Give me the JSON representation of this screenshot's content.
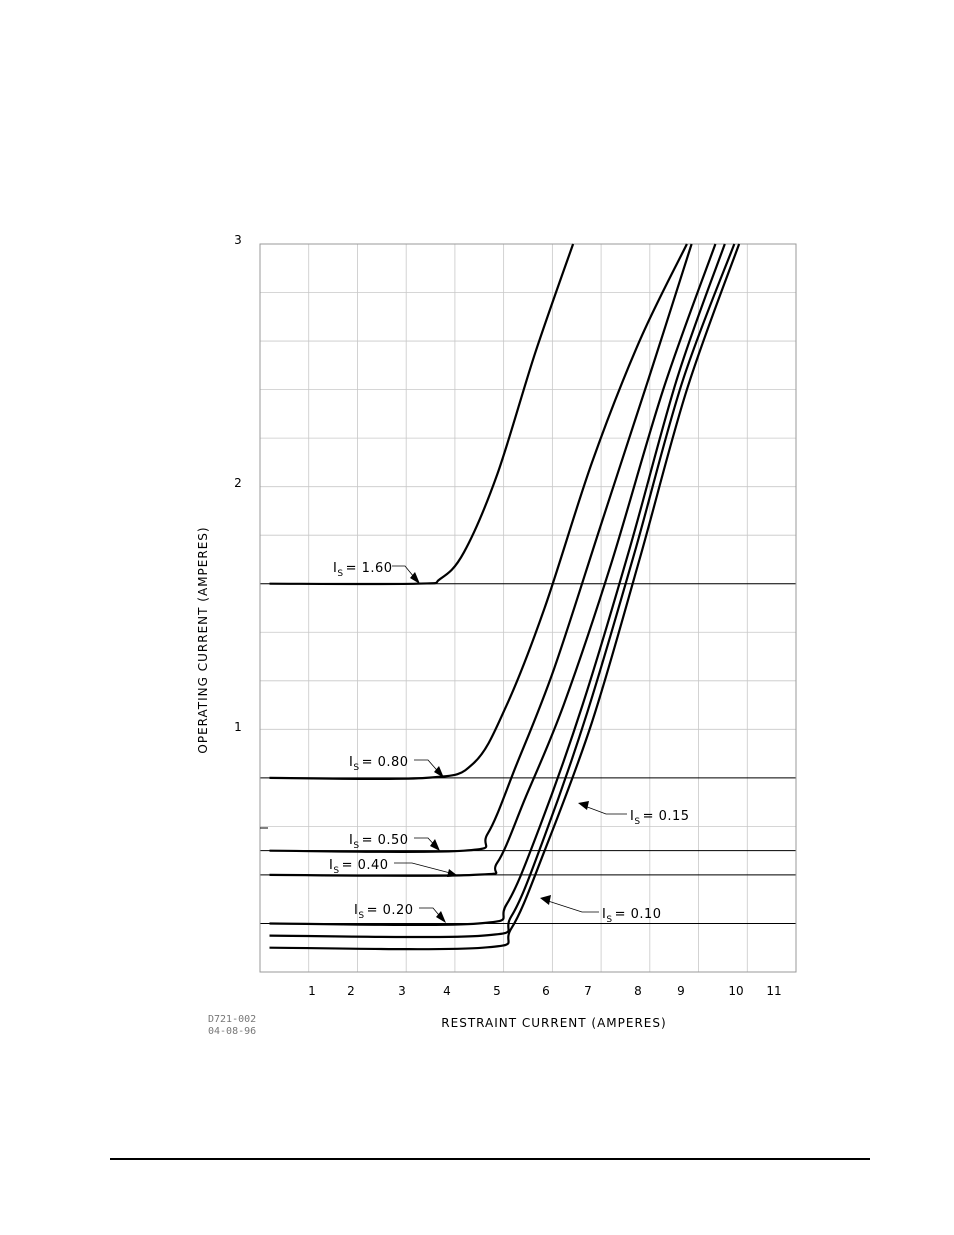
{
  "chart_data": {
    "type": "line",
    "title": "",
    "xlabel": "RESTRAINT CURRENT (AMPERES)",
    "ylabel": "OPERATING CURRENT (AMPERES)",
    "xlim": [
      0,
      11.3
    ],
    "ylim": [
      0,
      3
    ],
    "x_ticks": [
      "1",
      "2",
      "3",
      "4",
      "5",
      "6",
      "7",
      "8",
      "9",
      "10",
      "11"
    ],
    "y_ticks": [
      "1",
      "2",
      "3"
    ],
    "grid": true,
    "series": [
      {
        "name": "IS= 1.60",
        "label_prefix": "I",
        "label_sub": "S",
        "label_value": "= 1.60",
        "points": [
          [
            0.2,
            1.6
          ],
          [
            3.3,
            1.6
          ],
          [
            3.8,
            1.62
          ],
          [
            4.3,
            1.73
          ],
          [
            5.0,
            2.05
          ],
          [
            5.8,
            2.55
          ],
          [
            6.6,
            3.0
          ]
        ]
      },
      {
        "name": "IS= 0.80",
        "label_prefix": "I",
        "label_sub": "S",
        "label_value": "= 0.80",
        "points": [
          [
            0.2,
            0.8
          ],
          [
            3.5,
            0.8
          ],
          [
            4.5,
            0.86
          ],
          [
            5.2,
            1.1
          ],
          [
            6.0,
            1.5
          ],
          [
            7.0,
            2.1
          ],
          [
            8.0,
            2.6
          ],
          [
            9.0,
            3.0
          ]
        ]
      },
      {
        "name": "IS= 0.50",
        "label_prefix": "I",
        "label_sub": "S",
        "label_value": "= 0.50",
        "points": [
          [
            0.2,
            0.5
          ],
          [
            4.3,
            0.5
          ],
          [
            4.8,
            0.57
          ],
          [
            5.4,
            0.85
          ],
          [
            6.2,
            1.25
          ],
          [
            7.2,
            1.85
          ],
          [
            8.2,
            2.45
          ],
          [
            9.1,
            3.0
          ]
        ]
      },
      {
        "name": "IS= 0.40",
        "label_prefix": "I",
        "label_sub": "S",
        "label_value": "= 0.40",
        "points": [
          [
            0.2,
            0.4
          ],
          [
            4.5,
            0.4
          ],
          [
            5.0,
            0.45
          ],
          [
            5.6,
            0.72
          ],
          [
            6.4,
            1.1
          ],
          [
            7.4,
            1.68
          ],
          [
            8.5,
            2.4
          ],
          [
            9.6,
            3.0
          ]
        ]
      },
      {
        "name": "IS= 0.20",
        "label_prefix": "I",
        "label_sub": "S",
        "label_value": "= 0.20",
        "points": [
          [
            0.2,
            0.2
          ],
          [
            4.6,
            0.2
          ],
          [
            5.2,
            0.28
          ],
          [
            5.9,
            0.6
          ],
          [
            6.8,
            1.1
          ],
          [
            7.8,
            1.75
          ],
          [
            8.8,
            2.45
          ],
          [
            9.8,
            3.0
          ]
        ]
      },
      {
        "name": "IS= 0.15",
        "label_prefix": "I",
        "label_sub": "S",
        "label_value": "= 0.15",
        "points": [
          [
            0.2,
            0.15
          ],
          [
            4.7,
            0.15
          ],
          [
            5.3,
            0.23
          ],
          [
            6.0,
            0.56
          ],
          [
            6.9,
            1.07
          ],
          [
            7.9,
            1.73
          ],
          [
            8.9,
            2.43
          ],
          [
            10.0,
            3.0
          ]
        ]
      },
      {
        "name": "IS= 0.10",
        "label_prefix": "I",
        "label_sub": "S",
        "label_value": "= 0.10",
        "points": [
          [
            0.2,
            0.1
          ],
          [
            4.7,
            0.1
          ],
          [
            5.3,
            0.18
          ],
          [
            6.0,
            0.5
          ],
          [
            7.0,
            1.03
          ],
          [
            8.0,
            1.7
          ],
          [
            9.0,
            2.4
          ],
          [
            10.1,
            3.0
          ]
        ]
      }
    ],
    "reference_lines_y": [
      1.6,
      0.8,
      0.5,
      0.4,
      0.2
    ]
  },
  "drawing_id": {
    "number": "D721-002",
    "date": "04-08-96"
  }
}
